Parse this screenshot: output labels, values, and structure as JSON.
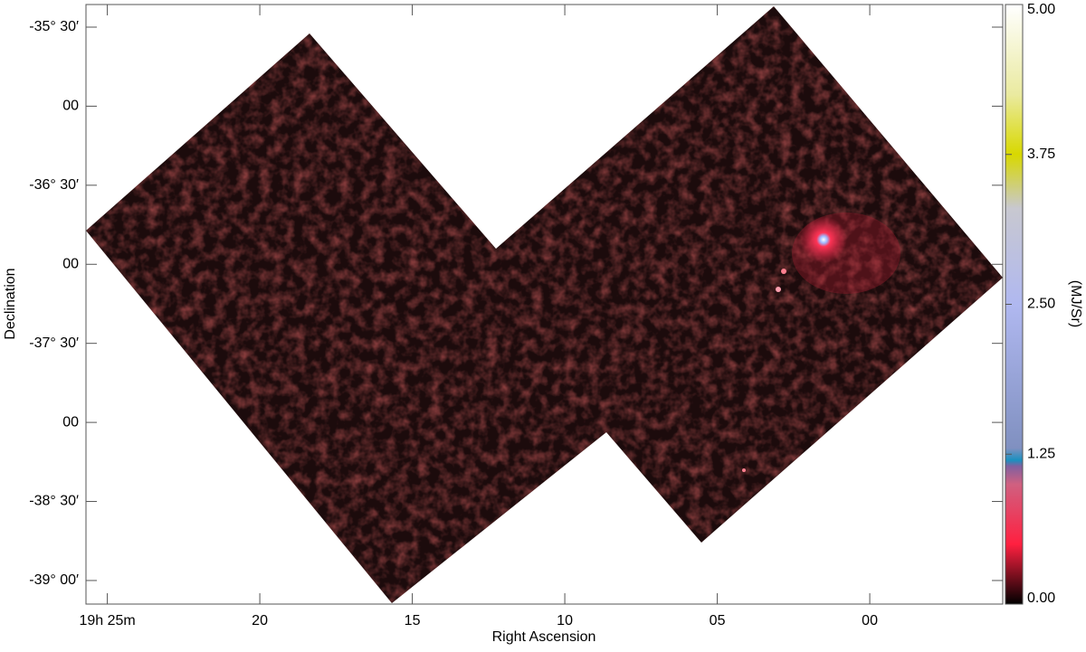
{
  "chart_data": {
    "type": "image",
    "xlabel": "Right Ascension",
    "ylabel": "Declination",
    "colorbar_label": "(MJ/Sr)",
    "xlim": [
      25.7,
      -4.36
    ],
    "xticks": [
      {
        "value": 25,
        "label": "19h 25m"
      },
      {
        "value": 20,
        "label": "20"
      },
      {
        "value": 15,
        "label": "15"
      },
      {
        "value": 10,
        "label": "10"
      },
      {
        "value": 5,
        "label": "05"
      },
      {
        "value": 0,
        "label": "00"
      }
    ],
    "ylim": [
      -39.149,
      -35.357
    ],
    "yticks": [
      {
        "value": -35.5,
        "label": "-35° 30′"
      },
      {
        "value": -36,
        "label": "00"
      },
      {
        "value": -36.5,
        "label": "-36° 30′"
      },
      {
        "value": -37,
        "label": "00"
      },
      {
        "value": -37.5,
        "label": "-37° 30′"
      },
      {
        "value": -38,
        "label": "00"
      },
      {
        "value": -38.5,
        "label": "-38° 30′"
      },
      {
        "value": -39,
        "label": "-39° 00′"
      }
    ],
    "clim": [
      0,
      5
    ],
    "cticks": [
      {
        "value": 0,
        "label": "0.00"
      },
      {
        "value": 1.25,
        "label": "1.25"
      },
      {
        "value": 2.5,
        "label": "2.50"
      },
      {
        "value": 3.75,
        "label": "3.75"
      },
      {
        "value": 5,
        "label": "5.00"
      }
    ]
  }
}
